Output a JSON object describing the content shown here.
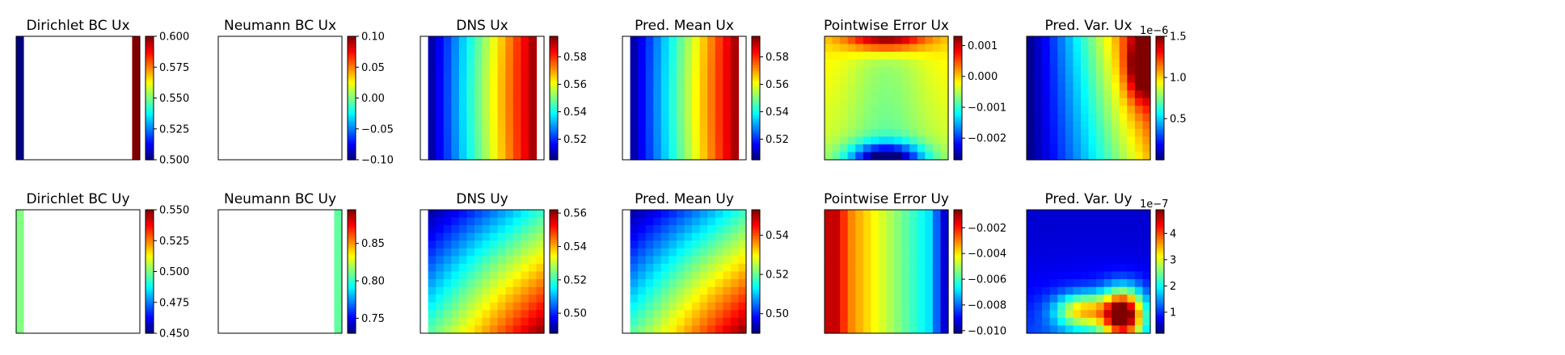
{
  "figure": {
    "colormap": "jet",
    "grid_size": 16
  },
  "chart_data": [
    {
      "id": "dirichlet-ux",
      "type": "heatmap",
      "title": "Dirichlet BC Ux",
      "field": {
        "kind": "dirichlet_x"
      },
      "colorbar": {
        "range": [
          0.5,
          0.6
        ],
        "ticks": [
          0.5,
          0.525,
          0.55,
          0.575,
          0.6
        ],
        "tick_labels": [
          "0.500",
          "0.525",
          "0.550",
          "0.575",
          "0.600"
        ],
        "multiplier": ""
      }
    },
    {
      "id": "neumann-ux",
      "type": "heatmap",
      "title": "Neumann BC Ux",
      "field": {
        "kind": "blank"
      },
      "colorbar": {
        "range": [
          -0.1,
          0.1
        ],
        "ticks": [
          -0.1,
          -0.05,
          0,
          0.05,
          0.1
        ],
        "tick_labels": [
          "−0.10",
          "−0.05",
          "0.00",
          "0.05",
          "0.10"
        ],
        "multiplier": ""
      }
    },
    {
      "id": "dns-ux",
      "type": "heatmap",
      "title": "DNS Ux",
      "field": {
        "kind": "linear_x",
        "from": 0.505,
        "to": 0.595,
        "left_strip": true,
        "right_strip": true
      },
      "colorbar": {
        "range": [
          0.505,
          0.595
        ],
        "ticks": [
          0.52,
          0.54,
          0.56,
          0.58
        ],
        "tick_labels": [
          "0.52",
          "0.54",
          "0.56",
          "0.58"
        ],
        "multiplier": ""
      }
    },
    {
      "id": "pred-mean-ux",
      "type": "heatmap",
      "title": "Pred. Mean Ux",
      "field": {
        "kind": "linear_x",
        "from": 0.505,
        "to": 0.595,
        "left_strip": true,
        "right_strip": true
      },
      "colorbar": {
        "range": [
          0.505,
          0.595
        ],
        "ticks": [
          0.52,
          0.54,
          0.56,
          0.58
        ],
        "tick_labels": [
          "0.52",
          "0.54",
          "0.56",
          "0.58"
        ],
        "multiplier": ""
      }
    },
    {
      "id": "error-ux",
      "type": "heatmap",
      "title": "Pointwise Error Ux",
      "field": {
        "kind": "error_x"
      },
      "colorbar": {
        "range": [
          -0.0027,
          0.0013
        ],
        "ticks": [
          -0.002,
          -0.001,
          0,
          0.001
        ],
        "tick_labels": [
          "−0.002",
          "−0.001",
          "0.000",
          "0.001"
        ],
        "multiplier": ""
      }
    },
    {
      "id": "pred-var-ux",
      "type": "heatmap",
      "title": "Pred. Var. Ux",
      "field": {
        "kind": "var_x"
      },
      "colorbar": {
        "range": [
          0.0,
          1.5
        ],
        "ticks": [
          0.5,
          1.0,
          1.5
        ],
        "tick_labels": [
          "0.5",
          "1.0",
          "1.5"
        ],
        "multiplier": "1e−6"
      }
    },
    {
      "id": "dirichlet-uy",
      "type": "heatmap",
      "title": "Dirichlet BC Uy",
      "field": {
        "kind": "dirichlet_y"
      },
      "colorbar": {
        "range": [
          0.45,
          0.55
        ],
        "ticks": [
          0.45,
          0.475,
          0.5,
          0.525,
          0.55
        ],
        "tick_labels": [
          "0.450",
          "0.475",
          "0.500",
          "0.525",
          "0.550"
        ],
        "multiplier": ""
      }
    },
    {
      "id": "neumann-uy",
      "type": "heatmap",
      "title": "Neumann BC Uy",
      "field": {
        "kind": "neumann_y"
      },
      "colorbar": {
        "range": [
          0.73,
          0.895
        ],
        "ticks": [
          0.75,
          0.8,
          0.85
        ],
        "tick_labels": [
          "0.75",
          "0.80",
          "0.85"
        ],
        "multiplier": ""
      }
    },
    {
      "id": "dns-uy",
      "type": "heatmap",
      "title": "DNS Uy",
      "field": {
        "kind": "diag",
        "lo": 0.488,
        "hi": 0.562
      },
      "colorbar": {
        "range": [
          0.488,
          0.562
        ],
        "ticks": [
          0.5,
          0.52,
          0.54,
          0.56
        ],
        "tick_labels": [
          "0.50",
          "0.52",
          "0.54",
          "0.56"
        ],
        "multiplier": ""
      }
    },
    {
      "id": "pred-mean-uy",
      "type": "heatmap",
      "title": "Pred. Mean Uy",
      "field": {
        "kind": "diag",
        "lo": 0.49,
        "hi": 0.553
      },
      "colorbar": {
        "range": [
          0.49,
          0.553
        ],
        "ticks": [
          0.5,
          0.52,
          0.54
        ],
        "tick_labels": [
          "0.50",
          "0.52",
          "0.54"
        ],
        "multiplier": ""
      }
    },
    {
      "id": "error-uy",
      "type": "heatmap",
      "title": "Pointwise Error Uy",
      "field": {
        "kind": "error_y"
      },
      "colorbar": {
        "range": [
          -0.0102,
          -0.0006
        ],
        "ticks": [
          -0.01,
          -0.008,
          -0.006,
          -0.004,
          -0.002
        ],
        "tick_labels": [
          "−0.010",
          "−0.008",
          "−0.006",
          "−0.004",
          "−0.002"
        ],
        "multiplier": ""
      }
    },
    {
      "id": "pred-var-uy",
      "type": "heatmap",
      "title": "Pred. Var. Uy",
      "field": {
        "kind": "var_y"
      },
      "colorbar": {
        "range": [
          0.2,
          4.9
        ],
        "ticks": [
          1,
          2,
          3,
          4
        ],
        "tick_labels": [
          "1",
          "2",
          "3",
          "4"
        ],
        "multiplier": "1e−7"
      }
    }
  ]
}
